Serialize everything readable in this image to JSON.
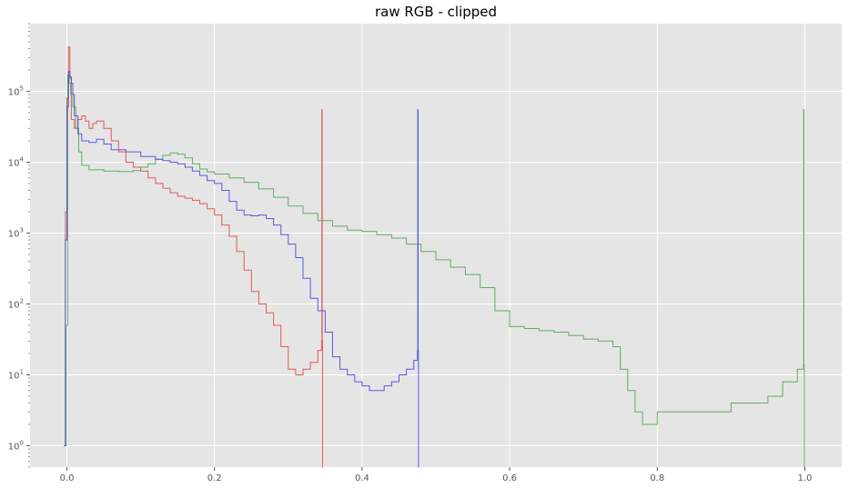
{
  "chart_data": {
    "type": "line",
    "title": "raw RGB - clipped",
    "xlabel": "",
    "ylabel": "",
    "xlim": [
      -0.05,
      1.05
    ],
    "ylim": [
      0.5,
      900000
    ],
    "yscale": "log",
    "grid": true,
    "xticks": [
      0.0,
      0.2,
      0.4,
      0.6,
      0.8,
      1.0
    ],
    "xtick_labels": [
      "0.0",
      "0.2",
      "0.4",
      "0.6",
      "0.8",
      "1.0"
    ],
    "yticks": [
      1,
      10,
      100,
      1000,
      10000,
      100000
    ],
    "colors": {
      "background": "#e5e5e5",
      "grid": "#ffffff",
      "red": "#e24a4a",
      "green": "#55a555",
      "blue": "#4a4ae2"
    },
    "series": [
      {
        "color": "#e24a4a",
        "x": [
          -0.004,
          -0.002,
          0.0,
          0.002,
          0.004,
          0.006,
          0.01,
          0.015,
          0.02,
          0.025,
          0.03,
          0.035,
          0.04,
          0.05,
          0.06,
          0.07,
          0.08,
          0.09,
          0.1,
          0.11,
          0.12,
          0.13,
          0.14,
          0.15,
          0.16,
          0.17,
          0.18,
          0.19,
          0.2,
          0.21,
          0.22,
          0.23,
          0.24,
          0.25,
          0.26,
          0.27,
          0.28,
          0.29,
          0.3,
          0.31,
          0.32,
          0.33,
          0.34,
          0.345,
          0.3455,
          0.346,
          0.3465,
          0.347
        ],
        "y": [
          1,
          2000,
          80000,
          420000,
          150000,
          40000,
          30000,
          40000,
          45000,
          38000,
          30000,
          35000,
          38000,
          30000,
          20000,
          14000,
          10000,
          8500,
          7500,
          6000,
          5000,
          4300,
          3700,
          3300,
          3100,
          2900,
          2600,
          2200,
          1800,
          1300,
          900,
          550,
          300,
          150,
          100,
          75,
          50,
          25,
          12,
          10,
          12,
          15,
          22,
          30,
          55000,
          30,
          0.5,
          0.5
        ]
      },
      {
        "color": "#55a555",
        "x": [
          -0.003,
          -0.001,
          0.001,
          0.003,
          0.005,
          0.008,
          0.012,
          0.016,
          0.02,
          0.03,
          0.05,
          0.07,
          0.09,
          0.1,
          0.11,
          0.12,
          0.13,
          0.14,
          0.15,
          0.16,
          0.17,
          0.18,
          0.19,
          0.2,
          0.22,
          0.24,
          0.26,
          0.28,
          0.3,
          0.32,
          0.34,
          0.36,
          0.38,
          0.4,
          0.42,
          0.44,
          0.46,
          0.48,
          0.5,
          0.52,
          0.54,
          0.56,
          0.58,
          0.6,
          0.62,
          0.64,
          0.66,
          0.68,
          0.7,
          0.72,
          0.74,
          0.75,
          0.76,
          0.77,
          0.78,
          0.8,
          0.85,
          0.9,
          0.95,
          0.97,
          0.99,
          0.998,
          0.9985,
          0.999,
          0.9995,
          1.0
        ],
        "y": [
          1,
          50,
          170000,
          130000,
          90000,
          60000,
          30000,
          14000,
          9000,
          7800,
          7500,
          7400,
          7600,
          8500,
          9500,
          11000,
          12500,
          13500,
          13000,
          11500,
          9500,
          8000,
          7300,
          6800,
          6000,
          5200,
          4200,
          3200,
          2400,
          1900,
          1500,
          1250,
          1100,
          1050,
          950,
          850,
          700,
          550,
          420,
          330,
          260,
          170,
          80,
          48,
          45,
          42,
          40,
          36,
          32,
          30,
          25,
          12,
          6,
          3,
          2,
          3,
          3,
          4,
          5,
          8,
          12,
          14,
          55000,
          14,
          0.5,
          0.5
        ]
      },
      {
        "color": "#4a4ae2",
        "x": [
          -0.004,
          -0.002,
          0.0,
          0.002,
          0.004,
          0.006,
          0.008,
          0.01,
          0.015,
          0.02,
          0.03,
          0.04,
          0.05,
          0.06,
          0.08,
          0.1,
          0.12,
          0.13,
          0.14,
          0.15,
          0.16,
          0.17,
          0.18,
          0.19,
          0.2,
          0.21,
          0.22,
          0.23,
          0.24,
          0.25,
          0.26,
          0.27,
          0.28,
          0.29,
          0.3,
          0.31,
          0.32,
          0.33,
          0.34,
          0.35,
          0.36,
          0.37,
          0.38,
          0.39,
          0.4,
          0.41,
          0.42,
          0.43,
          0.44,
          0.45,
          0.46,
          0.47,
          0.475,
          0.4755,
          0.476,
          0.4765,
          0.477
        ],
        "y": [
          1,
          800,
          60000,
          190000,
          160000,
          130000,
          90000,
          45000,
          25000,
          20000,
          19000,
          21000,
          18000,
          15000,
          14000,
          12000,
          11000,
          10500,
          10000,
          9500,
          8500,
          7500,
          6500,
          5500,
          5000,
          4000,
          2800,
          2100,
          1800,
          1750,
          1800,
          1600,
          1300,
          950,
          700,
          450,
          230,
          120,
          80,
          40,
          18,
          12,
          10,
          8,
          7,
          6,
          6,
          7,
          8,
          10,
          12,
          16,
          22,
          55000,
          22,
          0.5,
          0.5
        ]
      }
    ]
  }
}
